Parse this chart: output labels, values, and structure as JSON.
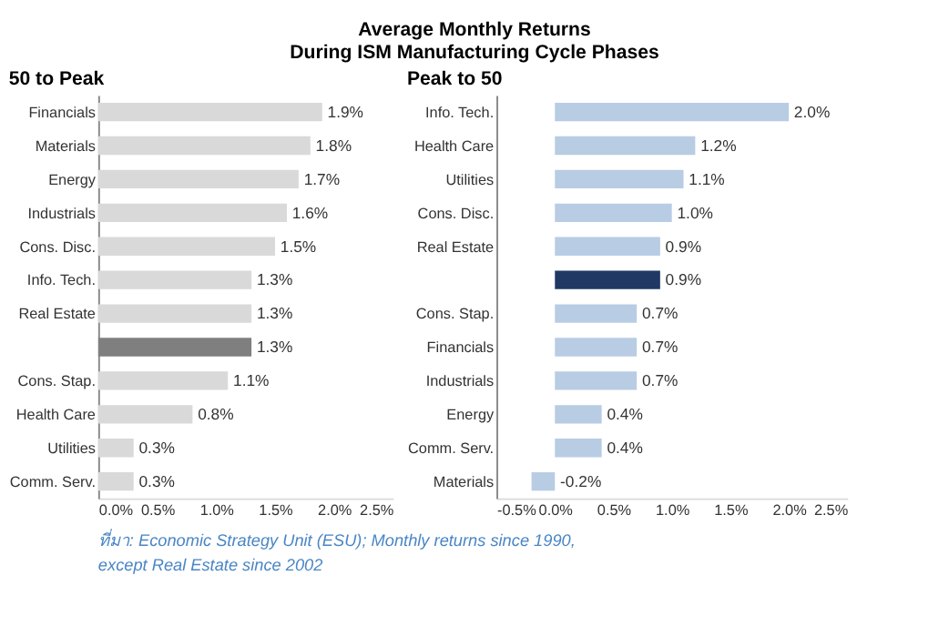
{
  "chart_data": [
    {
      "type": "bar",
      "orientation": "horizontal",
      "title": "Average Monthly Returns\nDuring ISM Manufacturing Cycle Phases",
      "subtitle": "50 to Peak",
      "categories": [
        "Financials",
        "Materials",
        "Energy",
        "Industrials",
        "Cons. Disc.",
        "Info. Tech.",
        "Real Estate",
        null,
        "Cons. Stap.",
        "Health Care",
        "Utilities",
        "Comm. Serv."
      ],
      "values": [
        1.9,
        1.8,
        1.7,
        1.6,
        1.5,
        1.3,
        1.3,
        1.3,
        1.1,
        0.8,
        0.3,
        0.3
      ],
      "value_labels": [
        "1.9%",
        "1.8%",
        "1.7%",
        "1.6%",
        "1.5%",
        "1.3%",
        "1.3%",
        "1.3%",
        "1.1%",
        "0.8%",
        "0.3%",
        "0.3%"
      ],
      "colors": [
        "#d9d9d9",
        "#d9d9d9",
        "#d9d9d9",
        "#d9d9d9",
        "#d9d9d9",
        "#d9d9d9",
        "#d9d9d9",
        "#7f7f7f",
        "#d9d9d9",
        "#d9d9d9",
        "#d9d9d9",
        "#d9d9d9"
      ],
      "xlim": [
        0,
        2.5
      ],
      "xticks": [
        {
          "value": 0,
          "label": "0.0%"
        },
        {
          "value": 0.5,
          "label": "0.5%"
        },
        {
          "value": 1,
          "label": "1.0%"
        },
        {
          "value": 1.5,
          "label": "1.5%"
        },
        {
          "value": 2,
          "label": "2.0%"
        },
        {
          "value": 2.5,
          "label": "2.5%"
        }
      ],
      "grid": false,
      "annotations": [
        "ที่มา: Economic Strategy Unit (ESU); Monthly returns since 1990,\nexcept Real Estate since 2002"
      ]
    },
    {
      "type": "bar",
      "orientation": "horizontal",
      "subtitle": "Peak to 50",
      "categories": [
        "Info. Tech.",
        "Health Care",
        "Utilities",
        "Cons. Disc.",
        "Real Estate",
        null,
        "Cons. Stap.",
        "Financials",
        "Industrials",
        "Energy",
        "Comm. Serv.",
        "Materials"
      ],
      "values": [
        2.0,
        1.2,
        1.1,
        1.0,
        0.9,
        0.9,
        0.7,
        0.7,
        0.7,
        0.4,
        0.4,
        -0.2
      ],
      "value_labels": [
        "2.0%",
        "1.2%",
        "1.1%",
        "1.0%",
        "0.9%",
        "0.9%",
        "0.7%",
        "0.7%",
        "0.7%",
        "0.4%",
        "0.4%",
        "-0.2%"
      ],
      "colors": [
        "#b8cce4",
        "#b8cce4",
        "#b8cce4",
        "#b8cce4",
        "#b8cce4",
        "#1f3864",
        "#b8cce4",
        "#b8cce4",
        "#b8cce4",
        "#b8cce4",
        "#b8cce4",
        "#b8cce4"
      ],
      "xlim": [
        -0.5,
        2.5
      ],
      "xticks": [
        {
          "value": -0.5,
          "label": "-0.5%"
        },
        {
          "value": 0,
          "label": "0.0%"
        },
        {
          "value": 0.5,
          "label": "0.5%"
        },
        {
          "value": 1,
          "label": "1.0%"
        },
        {
          "value": 1.5,
          "label": "1.5%"
        },
        {
          "value": 2,
          "label": "2.0%"
        },
        {
          "value": 2.5,
          "label": "2.5%"
        }
      ],
      "grid": false
    }
  ]
}
